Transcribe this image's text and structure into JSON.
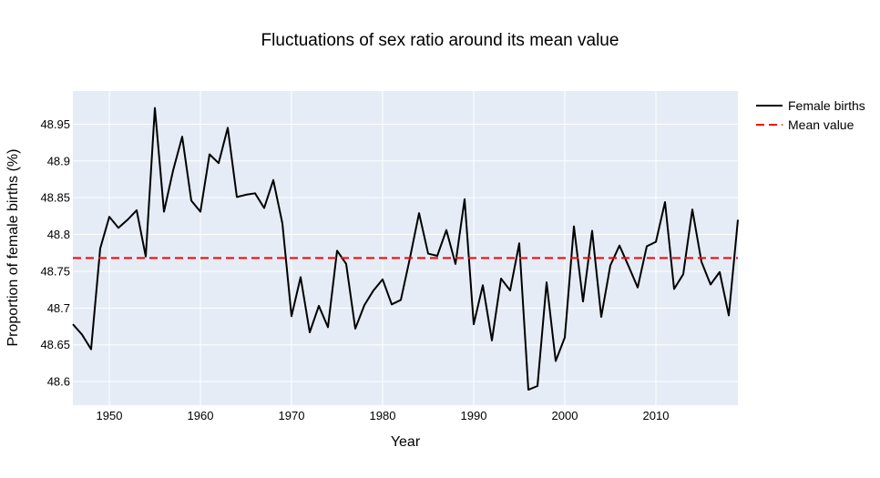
{
  "chart_data": {
    "type": "line",
    "title": "Fluctuations of sex ratio around its mean value",
    "xlabel": "Year",
    "ylabel": "Proportion of female births (%)",
    "xlim": [
      1946,
      2019
    ],
    "ylim": [
      48.568,
      48.995
    ],
    "x_ticks": [
      1950,
      1960,
      1970,
      1980,
      1990,
      2000,
      2010
    ],
    "y_ticks": [
      48.6,
      48.65,
      48.7,
      48.75,
      48.8,
      48.85,
      48.9,
      48.95
    ],
    "y_tick_labels": [
      "48.6",
      "48.65",
      "48.7",
      "48.75",
      "48.8",
      "48.85",
      "48.9",
      "48.95"
    ],
    "grid": true,
    "legend_position": "top-right",
    "background": "#e5ecf6",
    "series": [
      {
        "name": "Female births",
        "color": "#000000",
        "dash": "solid",
        "x": [
          1946,
          1947,
          1948,
          1949,
          1950,
          1951,
          1952,
          1953,
          1954,
          1955,
          1956,
          1957,
          1958,
          1959,
          1960,
          1961,
          1962,
          1963,
          1964,
          1965,
          1966,
          1967,
          1968,
          1969,
          1970,
          1971,
          1972,
          1973,
          1974,
          1975,
          1976,
          1977,
          1978,
          1979,
          1980,
          1981,
          1982,
          1983,
          1984,
          1985,
          1986,
          1987,
          1988,
          1989,
          1990,
          1991,
          1992,
          1993,
          1994,
          1995,
          1996,
          1997,
          1998,
          1999,
          2000,
          2001,
          2002,
          2003,
          2004,
          2005,
          2006,
          2007,
          2008,
          2009,
          2010,
          2011,
          2012,
          2013,
          2014,
          2015,
          2016,
          2017,
          2018,
          2019
        ],
        "y": [
          48.678,
          48.664,
          48.644,
          48.781,
          48.824,
          48.809,
          48.82,
          48.833,
          48.77,
          48.972,
          48.831,
          48.887,
          48.933,
          48.846,
          48.831,
          48.909,
          48.897,
          48.945,
          48.851,
          48.854,
          48.856,
          48.836,
          48.874,
          48.815,
          48.689,
          48.742,
          48.667,
          48.703,
          48.674,
          48.778,
          48.76,
          48.672,
          48.704,
          48.724,
          48.739,
          48.705,
          48.711,
          48.768,
          48.829,
          48.774,
          48.771,
          48.806,
          48.76,
          48.848,
          48.678,
          48.731,
          48.656,
          48.74,
          48.724,
          48.788,
          48.589,
          48.594,
          48.735,
          48.628,
          48.66,
          48.811,
          48.709,
          48.805,
          48.688,
          48.758,
          48.785,
          48.757,
          48.728,
          48.784,
          48.79,
          48.844,
          48.726,
          48.746,
          48.834,
          48.763,
          48.732,
          48.749,
          48.69,
          48.82
        ]
      },
      {
        "name": "Mean value",
        "color": "#ff0000",
        "dash": "dash",
        "x": [
          1946,
          2019
        ],
        "y": [
          48.768,
          48.768
        ]
      }
    ]
  }
}
